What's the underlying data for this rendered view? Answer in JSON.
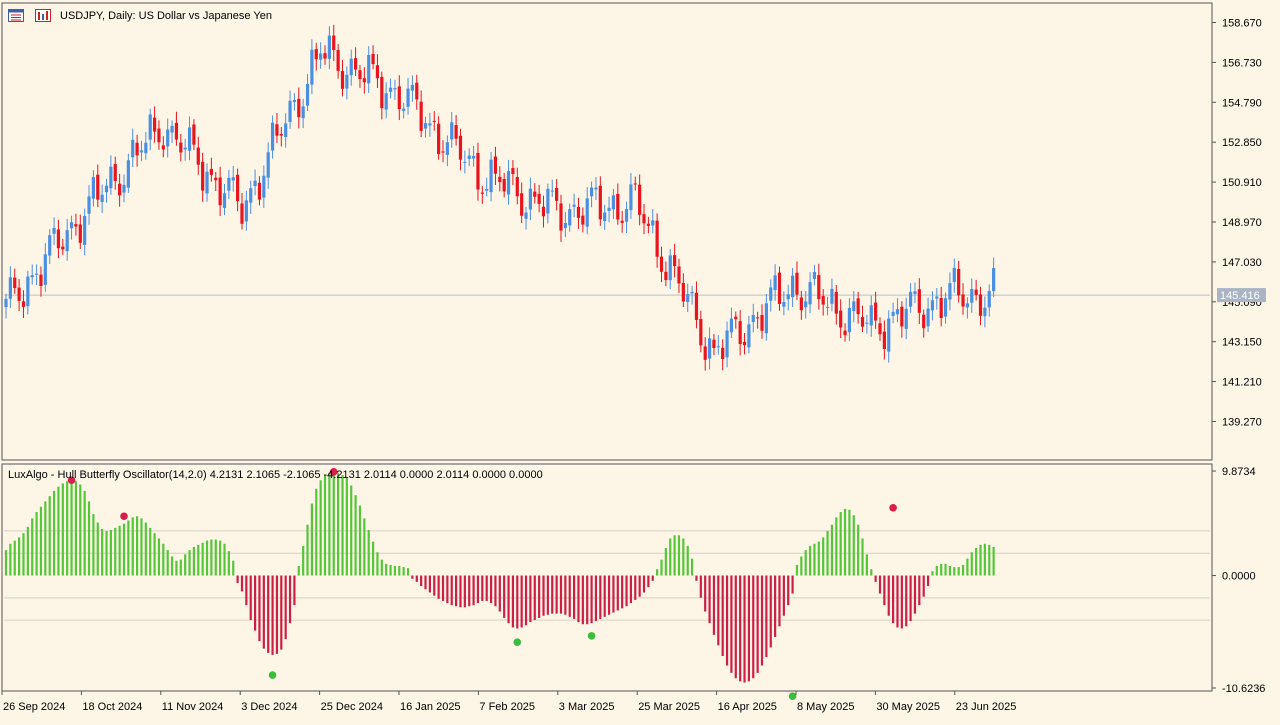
{
  "window": {
    "symbol_title": "USDJPY, Daily:  US Dollar vs Japanese Yen",
    "icons": [
      "chart-list-icon",
      "chart-bars-icon"
    ]
  },
  "colors": {
    "background": "#fdf5e6",
    "bull": "#4a90e2",
    "bear": "#e8141e",
    "osc_pos": "#55c63a",
    "osc_neg": "#cc1f45",
    "dot_top": "#d81e4a",
    "dot_bottom": "#3bbd3b",
    "current_price_label_bg": "#a9b4c4",
    "grid": "#cfcfcf"
  },
  "indicator": {
    "label": "LuxAlgo - Hull Butterfly Oscillator(14,2.0) 4.2131 2.1065 -2.1065 -4.2131 2.0114 0.0000 2.0114 0.0000 0.0000"
  },
  "chart_data": [
    {
      "type": "candlestick",
      "title": "USDJPY, Daily:  US Dollar vs Japanese Yen",
      "y_ticks": [
        "158.670",
        "156.730",
        "154.790",
        "152.850",
        "150.910",
        "148.970",
        "147.030",
        "145.090",
        "143.150",
        "141.210",
        "139.270"
      ],
      "y_tick_values": [
        158.67,
        156.73,
        154.79,
        152.85,
        150.91,
        148.97,
        147.03,
        145.09,
        143.15,
        141.21,
        139.27
      ],
      "ylim": [
        138.45,
        158.95
      ],
      "current_price": "145.416",
      "current_price_value": 145.416,
      "x_tick_labels": [
        "26 Sep 2024",
        "18 Oct 2024",
        "11 Nov 2024",
        "3 Dec 2024",
        "25 Dec 2024",
        "16 Jan 2025",
        "7 Feb 2025",
        "3 Mar 2025",
        "25 Mar 2025",
        "16 Apr 2025",
        "8 May 2025",
        "30 May 2025",
        "23 Jun 2025"
      ],
      "key_closes": [
        {
          "date": "26 Sep 2024",
          "close": 144.8
        },
        {
          "date": "18 Oct 2024",
          "close": 149.5
        },
        {
          "date": "11 Nov 2024",
          "close": 153.7
        },
        {
          "date": "3 Dec 2024",
          "close": 149.6
        },
        {
          "date": "25 Dec 2024",
          "close": 157.2
        },
        {
          "date": "16 Jan 2025",
          "close": 155.2
        },
        {
          "date": "7 Feb 2025",
          "close": 151.4
        },
        {
          "date": "3 Mar 2025",
          "close": 149.5
        },
        {
          "date": "25 Mar 2025",
          "close": 149.9
        },
        {
          "date": "16 Apr 2025",
          "close": 142.6
        },
        {
          "date": "8 May 2025",
          "close": 145.9
        },
        {
          "date": "30 May 2025",
          "close": 143.9
        },
        {
          "date": "23 Jun 2025",
          "close": 145.4
        }
      ]
    },
    {
      "type": "histogram",
      "title": "LuxAlgo - Hull Butterfly Oscillator(14,2.0)",
      "y_ticks": [
        "9.8734",
        "0.0000",
        "-10.6236"
      ],
      "y_tick_values": [
        9.8734,
        0.0,
        -10.6236
      ],
      "ylim": [
        -10.6236,
        9.8734
      ],
      "levels": [
        4.2131,
        2.1065,
        -2.1065,
        -4.2131
      ],
      "series": [
        {
          "values": [
            2.4,
            3.0,
            3.3,
            3.6,
            4.0,
            4.6,
            5.4,
            6.0,
            6.5,
            7.0,
            7.5,
            8.0,
            8.4,
            8.7,
            8.9,
            9.0,
            8.9,
            8.6,
            8.0,
            7.0,
            5.8,
            5.0,
            4.4,
            4.2,
            4.3,
            4.5,
            4.7,
            4.9,
            5.2,
            5.5,
            5.6,
            5.4,
            5.0,
            4.5,
            4.0,
            3.5,
            3.0,
            2.4,
            1.8,
            1.4,
            1.5,
            2.0,
            2.4,
            2.7,
            2.9,
            3.1,
            3.3,
            3.4,
            3.4,
            3.3,
            3.0,
            2.3,
            1.4,
            -0.7,
            -1.5,
            -2.8,
            -4.2,
            -5.2,
            -6.2,
            -6.9,
            -7.3,
            -7.5,
            -7.4,
            -7.0,
            -6.0,
            -4.5,
            -2.8,
            0.9,
            2.8,
            4.8,
            6.8,
            8.2,
            9.0,
            9.5,
            9.7,
            9.8,
            9.7,
            9.5,
            9.2,
            8.5,
            7.6,
            6.6,
            5.4,
            4.3,
            3.2,
            2.2,
            1.5,
            1.1,
            1.0,
            0.9,
            0.9,
            0.8,
            0.7,
            -0.3,
            -0.6,
            -1.0,
            -1.3,
            -1.6,
            -1.9,
            -2.2,
            -2.4,
            -2.6,
            -2.8,
            -2.9,
            -3.0,
            -3.0,
            -2.9,
            -2.8,
            -2.6,
            -2.4,
            -2.4,
            -2.6,
            -2.9,
            -3.4,
            -4.0,
            -4.5,
            -4.9,
            -5.0,
            -4.9,
            -4.7,
            -4.4,
            -4.2,
            -4.0,
            -3.8,
            -3.7,
            -3.6,
            -3.6,
            -3.6,
            -3.7,
            -3.9,
            -4.1,
            -4.4,
            -4.6,
            -4.6,
            -4.5,
            -4.3,
            -4.1,
            -3.9,
            -3.7,
            -3.5,
            -3.3,
            -3.1,
            -2.9,
            -2.6,
            -2.3,
            -2.0,
            -1.6,
            -1.1,
            -0.5,
            0.6,
            1.5,
            2.6,
            3.5,
            3.8,
            3.8,
            3.5,
            2.8,
            1.6,
            -0.5,
            -2.1,
            -3.4,
            -4.5,
            -5.6,
            -6.6,
            -7.6,
            -8.5,
            -9.2,
            -9.7,
            -10.0,
            -10.1,
            -10.0,
            -9.7,
            -9.2,
            -8.5,
            -7.7,
            -6.8,
            -5.8,
            -4.8,
            -3.8,
            -2.8,
            -1.7,
            1.0,
            1.8,
            2.4,
            2.8,
            3.0,
            3.2,
            3.6,
            4.2,
            4.8,
            5.5,
            6.0,
            6.3,
            6.2,
            5.7,
            4.8,
            3.5,
            2.0,
            0.6,
            -0.6,
            -1.7,
            -2.8,
            -3.8,
            -4.5,
            -4.9,
            -5.0,
            -4.8,
            -4.3,
            -3.6,
            -2.8,
            -2.0,
            -1.0,
            0.4,
            0.9,
            1.1,
            1.1,
            0.9,
            0.8,
            0.8,
            1.0,
            1.6,
            2.2,
            2.6,
            2.9,
            3.0,
            2.9,
            2.7
          ]
        }
      ],
      "markers": [
        {
          "index": 15,
          "value": 9.0,
          "kind": "top"
        },
        {
          "index": 27,
          "value": 5.6,
          "kind": "top"
        },
        {
          "index": 61,
          "value": -9.4,
          "kind": "bottom"
        },
        {
          "index": 75,
          "value": 9.8,
          "kind": "top"
        },
        {
          "index": 117,
          "value": -6.3,
          "kind": "bottom"
        },
        {
          "index": 134,
          "value": -5.7,
          "kind": "bottom"
        },
        {
          "index": 180,
          "value": -11.4,
          "kind": "bottom"
        },
        {
          "index": 203,
          "value": 6.4,
          "kind": "top"
        }
      ]
    }
  ]
}
